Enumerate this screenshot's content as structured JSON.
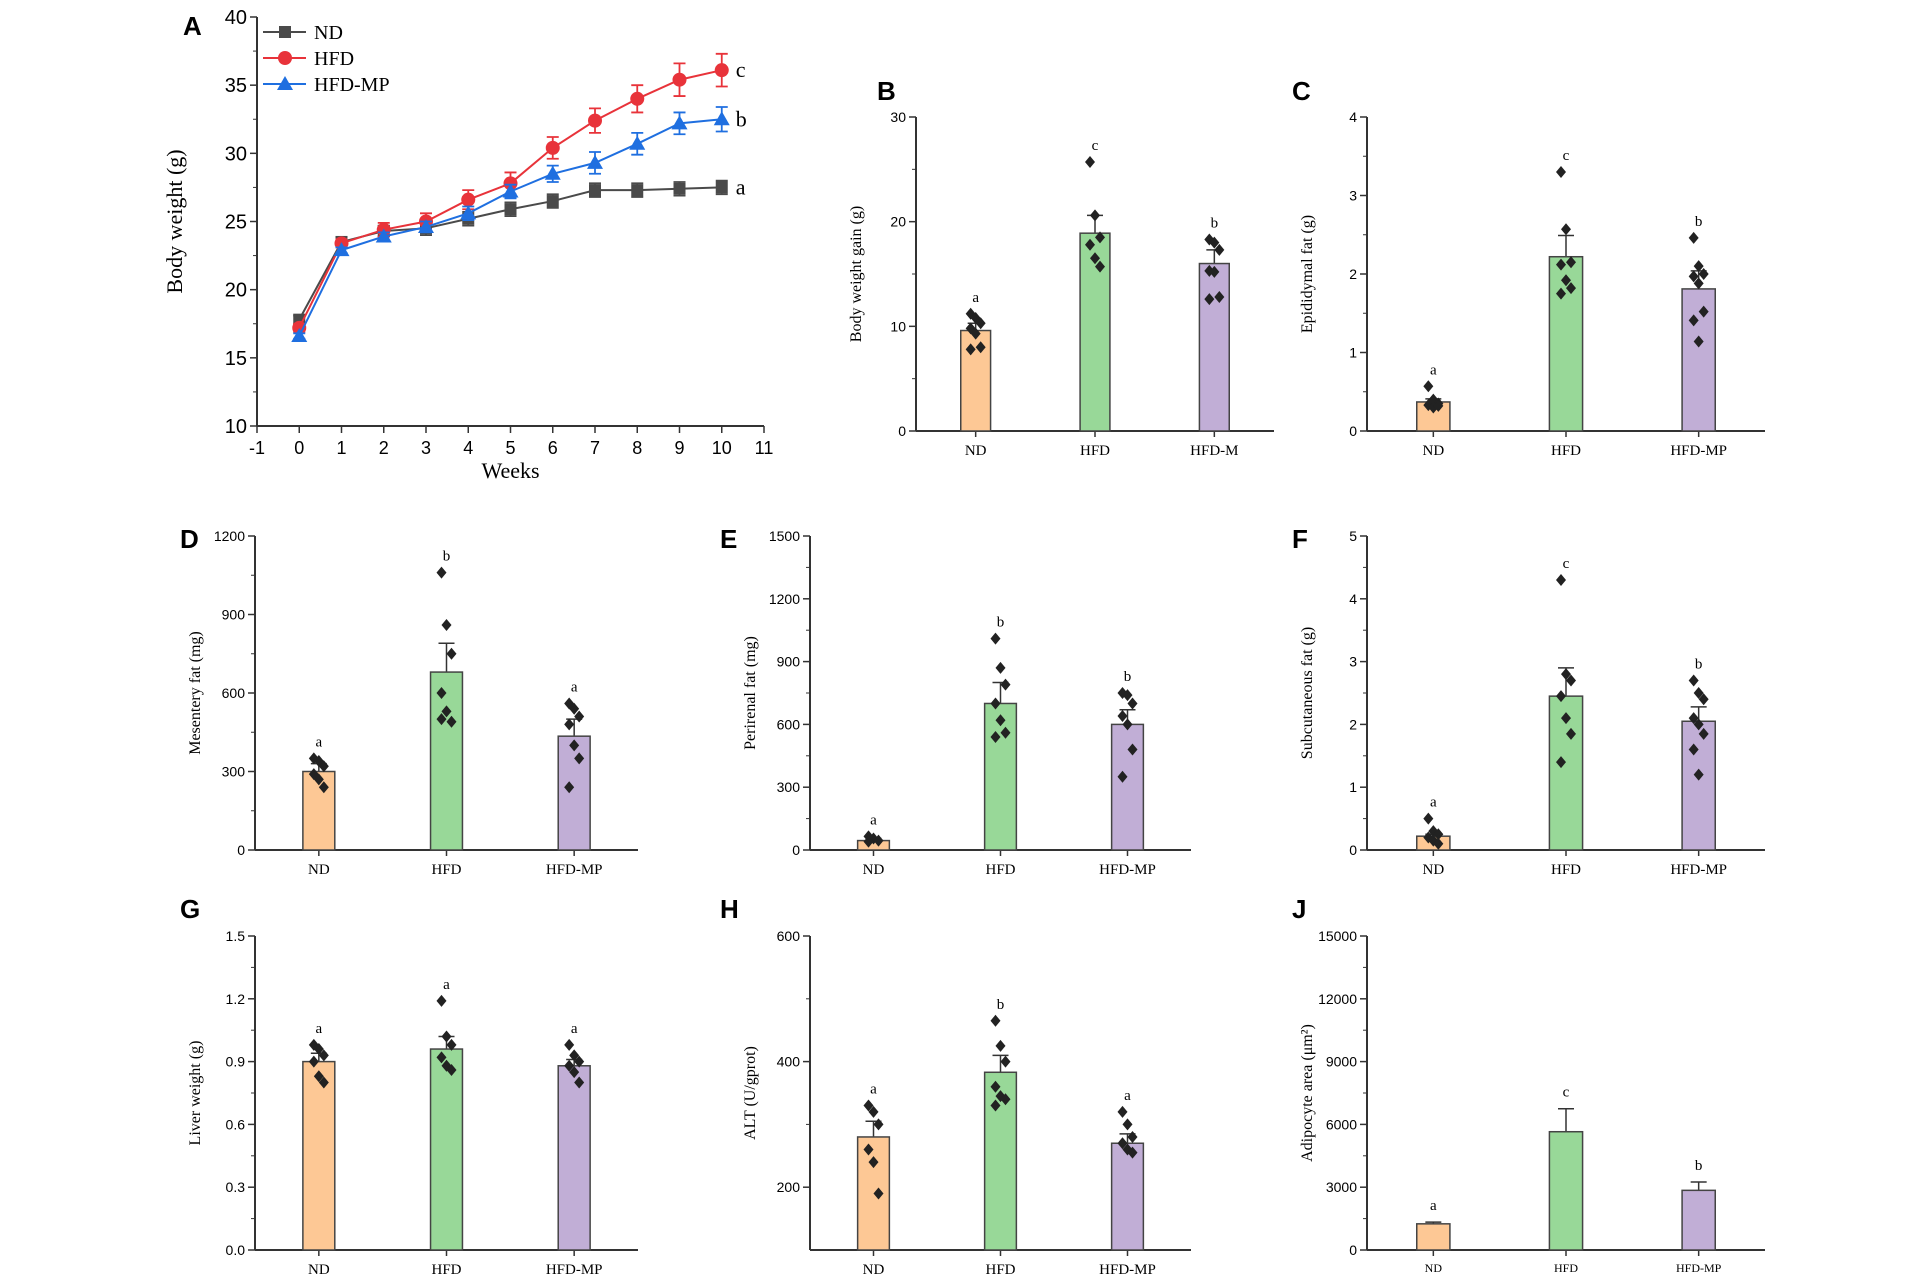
{
  "colors": {
    "ND_bar": "#fdc895",
    "HFD_bar": "#98d898",
    "HFDMP_bar": "#c1aed6",
    "ND_line": "#4a4a4a",
    "HFD_line": "#e8333a",
    "HFDMP_line": "#1f6fe0",
    "points": "#222222"
  },
  "chart_data": [
    {
      "panel": "A",
      "type": "line",
      "xlabel": "Weeks",
      "ylabel": "Body weight (g)",
      "xlim": [
        -1,
        11
      ],
      "ylim": [
        10,
        40
      ],
      "xticks": [
        -1,
        0,
        1,
        2,
        3,
        4,
        5,
        6,
        7,
        8,
        9,
        10,
        11
      ],
      "yticks": [
        10,
        15,
        20,
        25,
        30,
        35,
        40
      ],
      "x": [
        0,
        1,
        2,
        3,
        4,
        5,
        6,
        7,
        8,
        9,
        10
      ],
      "legend": "top-left",
      "series": [
        {
          "name": "ND",
          "marker": "square",
          "values": [
            17.8,
            23.5,
            24.3,
            24.5,
            25.2,
            25.9,
            26.5,
            27.3,
            27.3,
            27.4,
            27.5
          ],
          "error": [
            0.3,
            0.3,
            0.4,
            0.5,
            0.5,
            0.5,
            0.5,
            0.5,
            0.5,
            0.5,
            0.5
          ],
          "letter": "a"
        },
        {
          "name": "HFD",
          "marker": "circle",
          "values": [
            17.2,
            23.4,
            24.4,
            25.0,
            26.6,
            27.8,
            30.4,
            32.4,
            34.0,
            35.4,
            36.1
          ],
          "error": [
            0.3,
            0.3,
            0.5,
            0.6,
            0.7,
            0.8,
            0.8,
            0.9,
            1.0,
            1.2,
            1.2
          ],
          "letter": "c"
        },
        {
          "name": "HFD-MP",
          "marker": "triangle",
          "values": [
            16.6,
            22.9,
            23.9,
            24.6,
            25.6,
            27.2,
            28.5,
            29.3,
            30.7,
            32.2,
            32.5
          ],
          "error": [
            0.2,
            0.2,
            0.3,
            0.4,
            0.5,
            0.5,
            0.6,
            0.8,
            0.8,
            0.8,
            0.9
          ],
          "letter": "b"
        }
      ]
    },
    {
      "panel": "B",
      "type": "bar",
      "ylabel": "Body weight gain (g)",
      "ylim": [
        0,
        30
      ],
      "yticks": [
        0,
        10,
        20,
        30
      ],
      "categories": [
        "ND",
        "HFD",
        "HFD-M"
      ],
      "values": [
        9.6,
        18.9,
        16.0
      ],
      "error_top": [
        10.3,
        20.6,
        17.3
      ],
      "letters": [
        "a",
        "c",
        "b"
      ],
      "points": [
        [
          11.2,
          10.8,
          10.3,
          9.8,
          9.3,
          8.0,
          7.8
        ],
        [
          25.7,
          20.6,
          18.5,
          17.8,
          16.5,
          15.7
        ],
        [
          18.3,
          18.0,
          17.3,
          15.3,
          15.2,
          12.8,
          12.6
        ]
      ]
    },
    {
      "panel": "C",
      "type": "bar",
      "ylabel": "Epididymal fat (g)",
      "ylim": [
        0,
        4
      ],
      "yticks": [
        0,
        1,
        2,
        3,
        4
      ],
      "categories": [
        "ND",
        "HFD",
        "HFD-MP"
      ],
      "values": [
        0.37,
        2.22,
        1.81
      ],
      "error_top": [
        0.41,
        2.49,
        2.04
      ],
      "letters": [
        "a",
        "c",
        "b"
      ],
      "points": [
        [
          0.57,
          0.4,
          0.35,
          0.33,
          0.3,
          0.32
        ],
        [
          3.3,
          2.57,
          2.15,
          2.12,
          1.92,
          1.82,
          1.75
        ],
        [
          2.46,
          2.1,
          2.0,
          1.97,
          1.88,
          1.52,
          1.41,
          1.14
        ]
      ]
    },
    {
      "panel": "D",
      "type": "bar",
      "ylabel": "Mesentery fat (mg)",
      "ylim": [
        0,
        1200
      ],
      "yticks": [
        0,
        300,
        600,
        900,
        1200
      ],
      "categories": [
        "ND",
        "HFD",
        "HFD-MP"
      ],
      "values": [
        300,
        680,
        435
      ],
      "error_top": [
        330,
        790,
        500
      ],
      "letters": [
        "a",
        "b",
        "a"
      ],
      "points": [
        [
          350,
          340,
          320,
          290,
          270,
          240
        ],
        [
          1060,
          860,
          750,
          600,
          530,
          490,
          500
        ],
        [
          560,
          540,
          510,
          480,
          400,
          350,
          240
        ]
      ]
    },
    {
      "panel": "E",
      "type": "bar",
      "ylabel": "Perirenal fat (mg)",
      "ylim": [
        0,
        1500
      ],
      "yticks": [
        0,
        300,
        600,
        900,
        1200,
        1500
      ],
      "categories": [
        "ND",
        "HFD",
        "HFD-MP"
      ],
      "values": [
        45,
        700,
        600
      ],
      "error_top": [
        55,
        800,
        670
      ],
      "letters": [
        "a",
        "b",
        "b"
      ],
      "points": [
        [
          65,
          55,
          45,
          40
        ],
        [
          1010,
          870,
          790,
          700,
          620,
          560,
          540
        ],
        [
          750,
          740,
          700,
          640,
          600,
          480,
          350
        ]
      ]
    },
    {
      "panel": "F",
      "type": "bar",
      "ylabel": "Subcutaneous fat (g)",
      "ylim": [
        0,
        5
      ],
      "yticks": [
        0,
        1,
        2,
        3,
        4,
        5
      ],
      "categories": [
        "ND",
        "HFD",
        "HFD-MP"
      ],
      "values": [
        0.22,
        2.45,
        2.05
      ],
      "error_top": [
        0.25,
        2.9,
        2.28
      ],
      "letters": [
        "a",
        "c",
        "b"
      ],
      "points": [
        [
          0.5,
          0.3,
          0.25,
          0.2,
          0.15,
          0.1
        ],
        [
          4.3,
          2.8,
          2.7,
          2.45,
          2.1,
          1.85,
          1.4
        ],
        [
          2.7,
          2.5,
          2.4,
          2.1,
          2.0,
          1.85,
          1.6,
          1.2
        ]
      ]
    },
    {
      "panel": "G",
      "type": "bar",
      "ylabel": "Liver weight (g)",
      "ylim": [
        0,
        1.5
      ],
      "yticks": [
        0.0,
        0.3,
        0.6,
        0.9,
        1.2,
        1.5
      ],
      "ytick_labels": [
        "0.0",
        "0.3",
        "0.6",
        "0.9",
        "1.2",
        "1.5"
      ],
      "categories": [
        "ND",
        "HFD",
        "HFD-MP"
      ],
      "values": [
        0.9,
        0.96,
        0.88
      ],
      "error_top": [
        0.94,
        1.02,
        0.91
      ],
      "letters": [
        "a",
        "a",
        "a"
      ],
      "points": [
        [
          0.98,
          0.96,
          0.93,
          0.9,
          0.83,
          0.8
        ],
        [
          1.19,
          1.02,
          0.98,
          0.92,
          0.88,
          0.86
        ],
        [
          0.98,
          0.93,
          0.9,
          0.88,
          0.85,
          0.8
        ]
      ]
    },
    {
      "panel": "H",
      "type": "bar",
      "ylabel": "ALT (U/gprot)",
      "ylim": [
        100,
        600
      ],
      "yticks": [
        200,
        400,
        600
      ],
      "categories": [
        "ND",
        "HFD",
        "HFD-MP"
      ],
      "values": [
        280,
        383,
        270
      ],
      "error_top": [
        305,
        410,
        285
      ],
      "letters": [
        "a",
        "b",
        "a"
      ],
      "points": [
        [
          330,
          320,
          300,
          260,
          240,
          190
        ],
        [
          465,
          425,
          400,
          360,
          345,
          340,
          330
        ],
        [
          320,
          300,
          280,
          270,
          260,
          255
        ]
      ]
    },
    {
      "panel": "J",
      "type": "bar",
      "ylabel": "Adipocyte area (μm²)",
      "ylim": [
        0,
        15000
      ],
      "yticks": [
        0,
        3000,
        6000,
        9000,
        12000,
        15000
      ],
      "categories": [
        "ND",
        "HFD",
        "HFD-MP"
      ],
      "values": [
        1250,
        5650,
        2850
      ],
      "error_top": [
        1330,
        6750,
        3250
      ],
      "letters": [
        "a",
        "c",
        "b"
      ],
      "points": []
    }
  ]
}
